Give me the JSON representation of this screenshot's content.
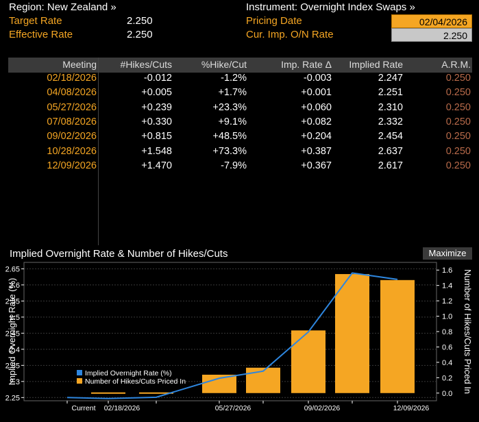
{
  "header": {
    "region": "Region: New Zealand »",
    "target_rate_label": "Target Rate",
    "target_rate_value": "2.250",
    "effective_rate_label": "Effective Rate",
    "effective_rate_value": "2.250",
    "instrument": "Instrument: Overnight Index Swaps »",
    "pricing_date_label": "Pricing Date",
    "pricing_date_value": "02/04/2026",
    "cur_imp_label": "Cur. Imp. O/N Rate",
    "cur_imp_value": "2.250"
  },
  "table": {
    "columns": [
      "Meeting",
      "#Hikes/Cuts",
      "%Hike/Cut",
      "Imp. Rate Δ",
      "Implied Rate",
      "A.R.M."
    ],
    "rows": [
      [
        "02/18/2026",
        "-0.012",
        "-1.2%",
        "-0.003",
        "2.247",
        "0.250"
      ],
      [
        "04/08/2026",
        "+0.005",
        "+1.7%",
        "+0.001",
        "2.251",
        "0.250"
      ],
      [
        "05/27/2026",
        "+0.239",
        "+23.3%",
        "+0.060",
        "2.310",
        "0.250"
      ],
      [
        "07/08/2026",
        "+0.330",
        "+9.1%",
        "+0.082",
        "2.332",
        "0.250"
      ],
      [
        "09/02/2026",
        "+0.815",
        "+48.5%",
        "+0.204",
        "2.454",
        "0.250"
      ],
      [
        "10/28/2026",
        "+1.548",
        "+73.3%",
        "+0.387",
        "2.637",
        "0.250"
      ],
      [
        "12/09/2026",
        "+1.470",
        "-7.9%",
        "+0.367",
        "2.617",
        "0.250"
      ]
    ]
  },
  "chart_section": {
    "title": "Implied Overnight Rate & Number of Hikes/Cuts",
    "maximize_label": "Maximize"
  },
  "colors": {
    "orange": "#f5a623",
    "blue": "#2e86de",
    "arm_text": "#b86a4a"
  },
  "chart_data": {
    "type": "bar",
    "categories": [
      "Current",
      "02/18/2026",
      "04/08/2026",
      "05/27/2026",
      "07/08/2026",
      "09/02/2026",
      "10/28/2026",
      "12/09/2026"
    ],
    "x_tick_labels": [
      "Current",
      "02/18/2026",
      "05/27/2026",
      "09/02/2026",
      "12/09/2026"
    ],
    "series": [
      {
        "name": "Implied Overnight Rate (%)",
        "type": "line",
        "axis": "left",
        "values": [
          2.25,
          2.247,
          2.251,
          2.31,
          2.332,
          2.454,
          2.637,
          2.617
        ]
      },
      {
        "name": "Number of Hikes/Cuts Priced In",
        "type": "bar",
        "axis": "right",
        "values": [
          0,
          -0.012,
          0.005,
          0.239,
          0.33,
          0.815,
          1.548,
          1.47
        ]
      }
    ],
    "ylabel_left": "Implied Overnight Rate (%)",
    "ylabel_right": "Number of Hikes/Cuts Priced In",
    "ylim_left": [
      2.24,
      2.67
    ],
    "yticks_left": [
      "2.25",
      "2.3",
      "2.35",
      "2.4",
      "2.45",
      "2.5",
      "2.55",
      "2.6",
      "2.65"
    ],
    "ylim_right": [
      -0.1,
      1.7
    ],
    "yticks_right": [
      "0.0",
      "0.2",
      "0.4",
      "0.6",
      "0.8",
      "1.0",
      "1.2",
      "1.4",
      "1.6"
    ],
    "legend_position": "bottom-left"
  }
}
